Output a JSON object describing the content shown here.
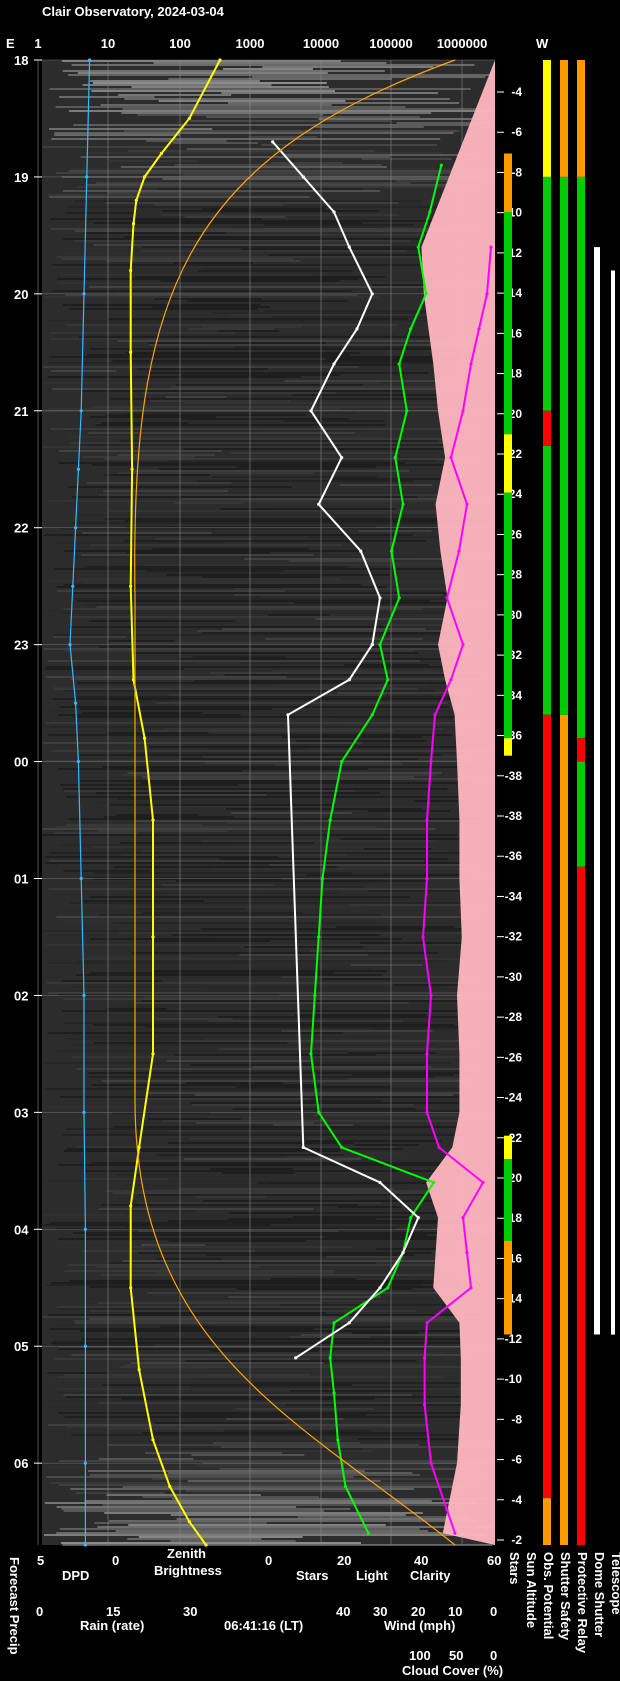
{
  "title": "Clair Observatory, 2024-03-04",
  "timestamp": "06:41:16 (LT)",
  "colors": {
    "background": "#000000",
    "dpd": "#33bbff",
    "zenith": "#ffff00",
    "stars": "#ffffff",
    "light": "#ffff00",
    "clarity": "#00ff00",
    "wind": "#ffb6c1",
    "cloud": "#ff00ff",
    "rain": "#00cccc",
    "sun_curve": "#ffa500",
    "status_good": "#00cc00",
    "status_warn": "#ff9900",
    "status_bad": "#ff0000",
    "status_caution": "#ffff00"
  },
  "chart_data": {
    "type": "line",
    "top_axis": {
      "left_label": "E",
      "right_label": "W",
      "ticks": [
        "1",
        "10",
        "100",
        "1000",
        "10000",
        "100000",
        "1000000"
      ],
      "scale": "log"
    },
    "time_axis": {
      "ticks": [
        "18",
        "19",
        "20",
        "21",
        "22",
        "23",
        "00",
        "01",
        "02",
        "03",
        "04",
        "05",
        "06"
      ],
      "start_hour": 18.0,
      "end_hour": 30.7
    },
    "sun_altitude_ticks": [
      "-4",
      "-6",
      "-8",
      "-10",
      "-12",
      "-14",
      "-16",
      "-18",
      "-20",
      "-22",
      "-24",
      "-26",
      "-28",
      "-30",
      "-32",
      "-34",
      "-36",
      "-38",
      "-38",
      "-36",
      "-34",
      "-32",
      "-30",
      "-28",
      "-26",
      "-24",
      "-22",
      "-20",
      "-18",
      "-16",
      "-14",
      "-12",
      "-10",
      "-8",
      "-6",
      "-4",
      "-2"
    ],
    "bottom_axes": [
      {
        "label": "DPD",
        "ticks": [
          "5",
          "0"
        ],
        "color": "#33bbff"
      },
      {
        "label": "Zenith Brightness",
        "ticks": [
          "0"
        ],
        "color": "#ffff00"
      },
      {
        "labels": [
          "Stars",
          "Light",
          "Clarity"
        ],
        "ticks": [
          "0",
          "20",
          "40",
          "60"
        ]
      },
      {
        "label": "Rain (rate)",
        "ticks": [
          "0",
          "15",
          "30"
        ],
        "color": "#00cccc"
      },
      {
        "label": "Wind (mph)",
        "ticks": [
          "40",
          "30",
          "20",
          "10",
          "0"
        ],
        "color": "#ffb6c1"
      },
      {
        "label": "Cloud Cover (%)",
        "ticks": [
          "100",
          "50",
          "0"
        ],
        "color": "#ff00ff"
      }
    ],
    "left_vertical_label": "Forecast Precip",
    "right_vertical_labels": [
      "Stars",
      "Sun Altitude",
      "Obs. Potential",
      "Shutter Safety",
      "Protective Relay",
      "Dome Shutter",
      "Telescope"
    ],
    "series": [
      {
        "name": "Clarity",
        "x": [
          18.9,
          19.3,
          19.6,
          20.0,
          20.3,
          20.6,
          21.0,
          21.4,
          21.8,
          22.2,
          22.6,
          23.0,
          23.3,
          23.6,
          24.0,
          24.5,
          25.0,
          25.5,
          26.0,
          26.5,
          27.0,
          27.3,
          27.6,
          27.9,
          28.2,
          28.5,
          28.8,
          29.1,
          29.4,
          29.8,
          30.2,
          30.6
        ],
        "y": [
          46,
          43,
          40,
          42,
          38,
          35,
          37,
          34,
          36,
          33,
          35,
          30,
          32,
          28,
          20,
          17,
          15,
          14,
          13,
          12,
          14,
          20,
          44,
          38,
          36,
          32,
          18,
          17,
          18,
          19,
          21,
          27
        ]
      },
      {
        "name": "Stars",
        "x": [
          18.7,
          19.0,
          19.3,
          19.6,
          20.0,
          20.3,
          20.6,
          21.0,
          21.4,
          21.8,
          22.2,
          22.6,
          23.0,
          23.3,
          23.6,
          27.3,
          27.6,
          27.9,
          28.2,
          28.5,
          28.8,
          29.1
        ],
        "y": [
          2,
          10,
          18,
          22,
          28,
          24,
          18,
          12,
          20,
          14,
          25,
          30,
          28,
          22,
          6,
          10,
          30,
          40,
          36,
          30,
          22,
          8
        ]
      },
      {
        "name": "Cloud Cover",
        "x": [
          19.6,
          20.0,
          20.3,
          20.6,
          21.0,
          21.4,
          21.8,
          22.2,
          22.6,
          23.0,
          23.3,
          23.6,
          24.0,
          24.5,
          25.0,
          25.5,
          26.0,
          26.5,
          27.0,
          27.3,
          27.6,
          27.9,
          28.2,
          28.5,
          28.8,
          29.1,
          29.5,
          30.0,
          30.4,
          30.6
        ],
        "y": [
          5,
          10,
          20,
          30,
          40,
          55,
          35,
          45,
          60,
          40,
          55,
          75,
          80,
          85,
          85,
          90,
          80,
          85,
          85,
          70,
          15,
          40,
          35,
          30,
          85,
          88,
          88,
          80,
          60,
          50
        ]
      },
      {
        "name": "Zenith Brightness",
        "x": [
          18.0,
          18.5,
          18.8,
          19.0,
          19.2,
          19.4,
          19.8,
          20.5,
          21.5,
          22.5,
          23.3,
          23.8,
          24.5,
          25.5,
          26.5,
          27.3,
          27.8,
          28.5,
          29.2,
          29.8,
          30.2,
          30.5,
          30.7
        ],
        "y": [
          4.3,
          3.2,
          2.2,
          1.6,
          1.3,
          1.2,
          1.1,
          1.1,
          1.15,
          1.1,
          1.2,
          1.6,
          1.9,
          1.9,
          1.9,
          1.4,
          1.1,
          1.1,
          1.4,
          1.9,
          2.5,
          3.2,
          3.8
        ]
      },
      {
        "name": "DPD",
        "x": [
          18.0,
          19.0,
          20.0,
          21.0,
          21.5,
          22.0,
          22.5,
          23.0,
          23.5,
          24.0,
          25.0,
          26.0,
          27.0,
          28.0,
          29.0,
          30.0,
          30.7
        ],
        "y": [
          1.6,
          1.8,
          2.0,
          2.2,
          2.4,
          2.6,
          2.8,
          3.0,
          2.6,
          2.4,
          2.2,
          2.0,
          2.0,
          1.9,
          1.9,
          1.9,
          1.9
        ]
      }
    ],
    "status_columns": [
      {
        "name": "Stars",
        "segments": [
          [
            18.8,
            19.3,
            "#ff9900"
          ],
          [
            19.3,
            21.2,
            "#00cc00"
          ],
          [
            21.2,
            21.7,
            "#ffff00"
          ],
          [
            21.7,
            23.8,
            "#00cc00"
          ],
          [
            23.8,
            23.95,
            "#ffff00"
          ],
          [
            27.2,
            27.4,
            "#ffff00"
          ],
          [
            27.4,
            28.1,
            "#00cc00"
          ],
          [
            28.1,
            28.9,
            "#ff9900"
          ]
        ]
      },
      {
        "name": "Obs. Potential",
        "segments": [
          [
            18.0,
            19.0,
            "#ffff00"
          ],
          [
            19.0,
            21.0,
            "#00cc00"
          ],
          [
            21.0,
            21.3,
            "#ff0000"
          ],
          [
            21.3,
            23.6,
            "#00cc00"
          ],
          [
            23.6,
            30.3,
            "#ff0000"
          ],
          [
            30.3,
            30.7,
            "#ff9900"
          ]
        ]
      },
      {
        "name": "Shutter Safety",
        "segments": [
          [
            18.0,
            19.0,
            "#ff9900"
          ],
          [
            19.0,
            23.6,
            "#00cc00"
          ],
          [
            23.6,
            30.7,
            "#ff9900"
          ]
        ]
      },
      {
        "name": "Protective Relay",
        "segments": [
          [
            18.0,
            19.0,
            "#ff9900"
          ],
          [
            19.0,
            23.8,
            "#00cc00"
          ],
          [
            23.8,
            24.0,
            "#ff0000"
          ],
          [
            24.0,
            24.9,
            "#00cc00"
          ],
          [
            24.9,
            30.7,
            "#ff0000"
          ]
        ]
      }
    ]
  }
}
